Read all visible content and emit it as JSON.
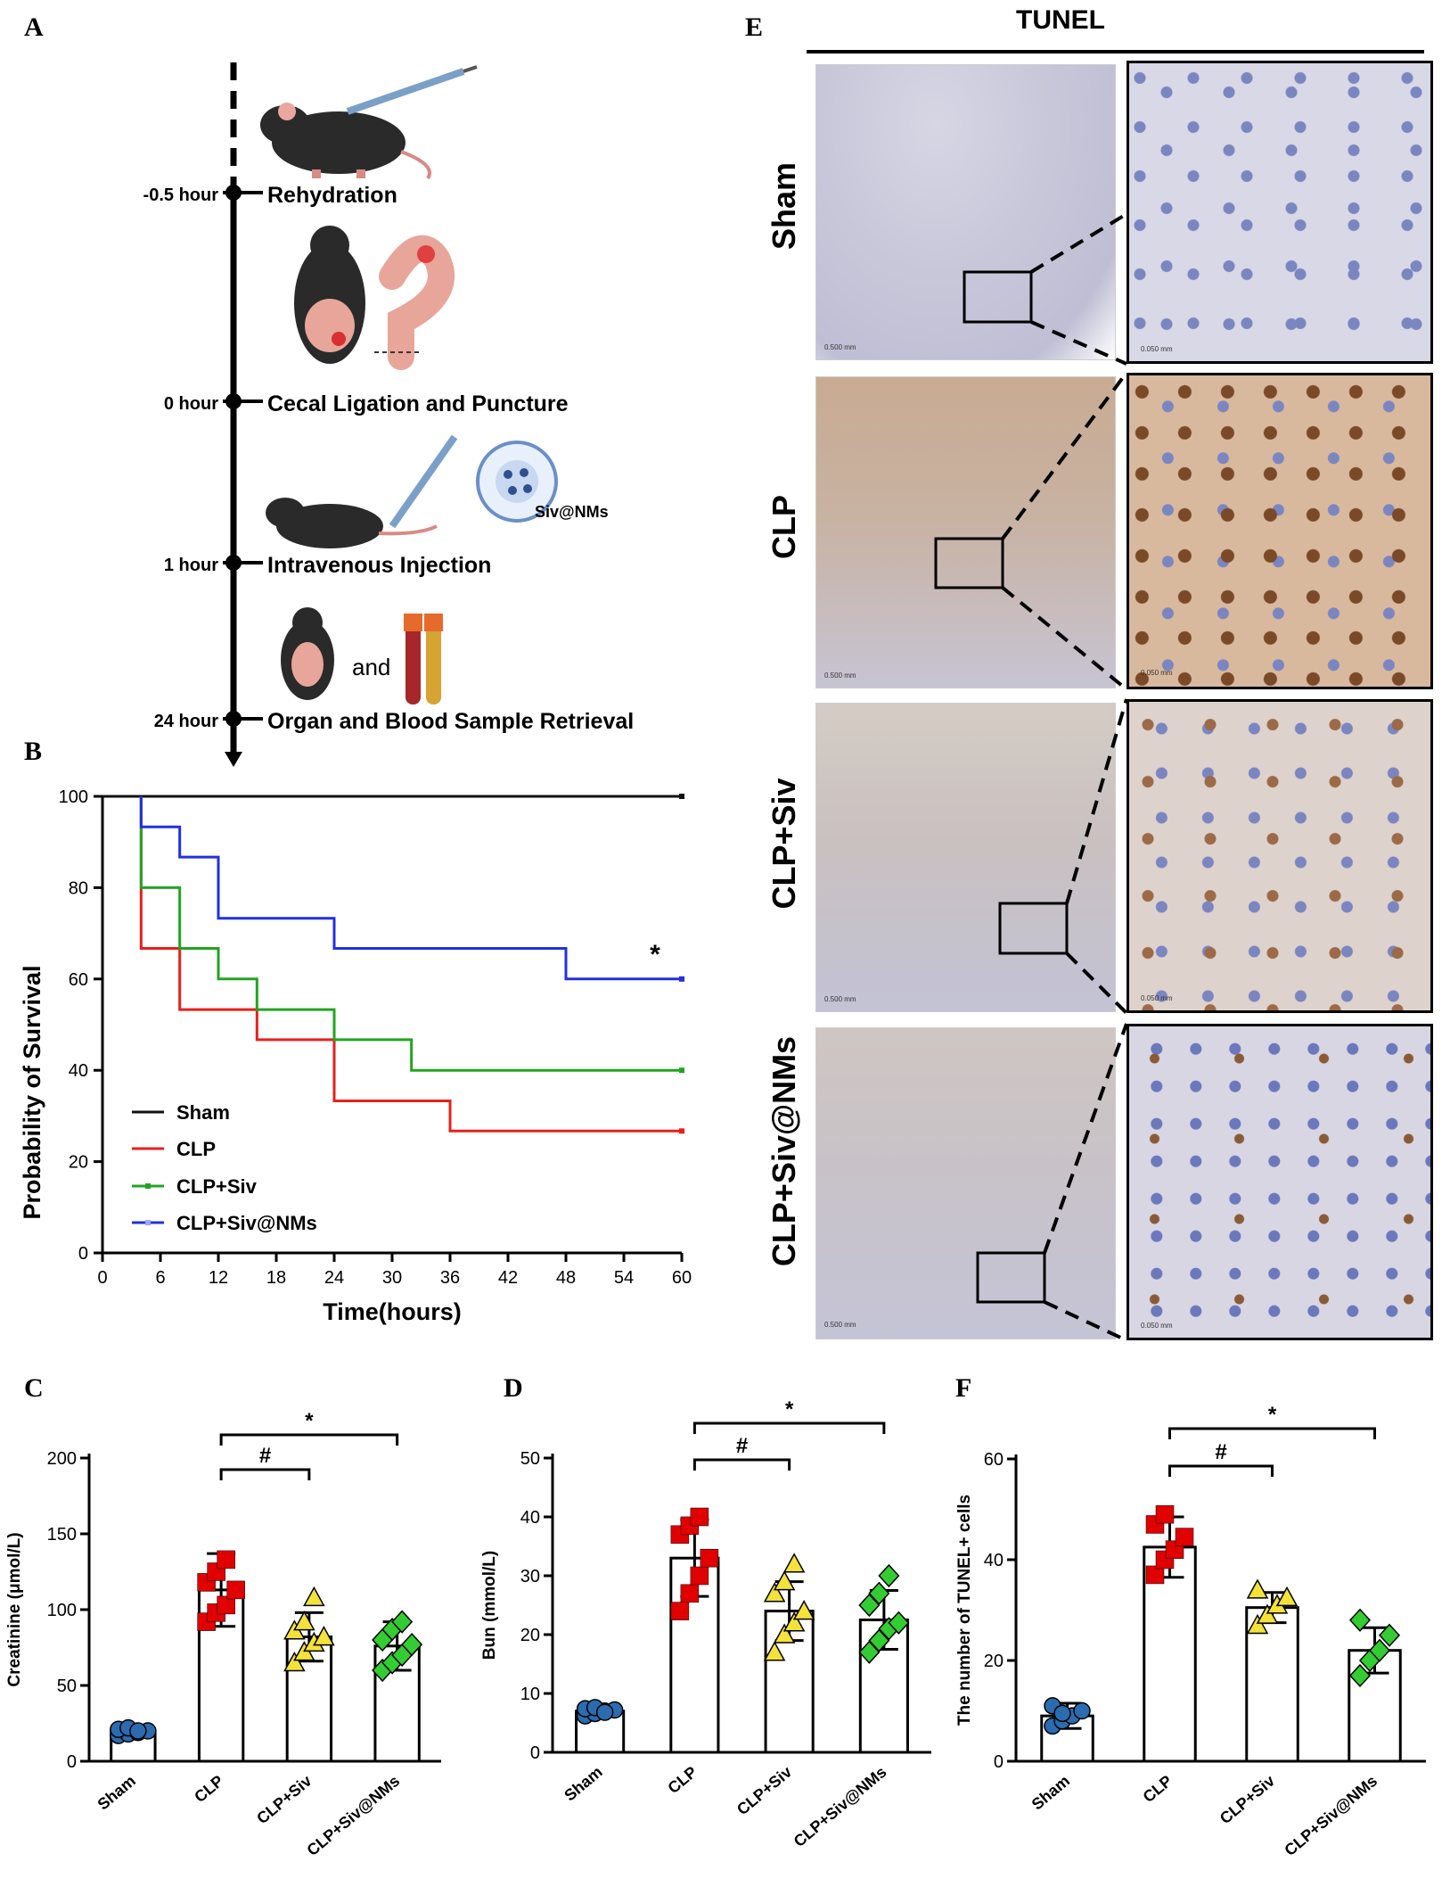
{
  "panels": {
    "a": "A",
    "b": "B",
    "c": "C",
    "d": "D",
    "e": "E",
    "f": "F"
  },
  "timeline": {
    "steps": [
      {
        "time": "-0.5 hour",
        "label": "Rehydration"
      },
      {
        "time": "0 hour",
        "label": "Cecal Ligation and Puncture"
      },
      {
        "time": "1 hour",
        "label": "Intravenous Injection"
      },
      {
        "time": "24 hour",
        "label": "Organ and Blood Sample Retrieval"
      }
    ],
    "nanoparticle_label": "Siv@NMs",
    "and_text": "and"
  },
  "colors": {
    "sham": "#111111",
    "clp": "#e8201a",
    "siv": "#22a422",
    "nms": "#2230e0",
    "sham_marker": "#2b6cb0",
    "clp_marker": "#e00000",
    "siv_marker": "#f3e23a",
    "nms_marker": "#33cc33"
  },
  "chart_data": [
    {
      "type": "line",
      "subtype": "kaplan-meier",
      "panel": "B",
      "title": "",
      "xlabel": "Time(hours)",
      "ylabel": "Probability of Survival",
      "xlim": [
        0,
        60
      ],
      "ylim": [
        0,
        100
      ],
      "xticks": [
        0,
        6,
        12,
        18,
        24,
        30,
        36,
        42,
        48,
        54,
        60
      ],
      "yticks": [
        0,
        20,
        40,
        60,
        80,
        100
      ],
      "annotation": "*",
      "series": [
        {
          "name": "Sham",
          "steps": [
            [
              0,
              100
            ],
            [
              60,
              100
            ]
          ]
        },
        {
          "name": "CLP",
          "steps": [
            [
              4,
              100
            ],
            [
              4,
              66.7
            ],
            [
              8,
              66.7
            ],
            [
              8,
              53.3
            ],
            [
              16,
              53.3
            ],
            [
              16,
              46.7
            ],
            [
              24,
              46.7
            ],
            [
              24,
              33.3
            ],
            [
              36,
              33.3
            ],
            [
              36,
              26.7
            ],
            [
              60,
              26.7
            ]
          ]
        },
        {
          "name": "CLP+Siv",
          "steps": [
            [
              4,
              100
            ],
            [
              4,
              80
            ],
            [
              8,
              80
            ],
            [
              8,
              66.7
            ],
            [
              12,
              66.7
            ],
            [
              12,
              60
            ],
            [
              16,
              60
            ],
            [
              16,
              53.3
            ],
            [
              24,
              53.3
            ],
            [
              24,
              46.7
            ],
            [
              32,
              46.7
            ],
            [
              32,
              40
            ],
            [
              60,
              40
            ]
          ]
        },
        {
          "name": "CLP+Siv@NMs",
          "steps": [
            [
              4,
              100
            ],
            [
              4,
              93.3
            ],
            [
              8,
              93.3
            ],
            [
              8,
              86.7
            ],
            [
              12,
              86.7
            ],
            [
              12,
              73.3
            ],
            [
              24,
              73.3
            ],
            [
              24,
              66.7
            ],
            [
              48,
              66.7
            ],
            [
              48,
              60
            ],
            [
              60,
              60
            ]
          ]
        }
      ]
    },
    {
      "type": "bar",
      "panel": "C",
      "ylabel": "Creatinine (μmol/L)",
      "ylim": [
        0,
        200
      ],
      "yticks": [
        0,
        50,
        100,
        150,
        200
      ],
      "categories": [
        "Sham",
        "CLP",
        "CLP+Siv",
        "CLP+Siv@NMs"
      ],
      "values": [
        20,
        113,
        82,
        76
      ],
      "errors": [
        3,
        24,
        16,
        16
      ],
      "points": [
        [
          17,
          18,
          19,
          20,
          21,
          22,
          20
        ],
        [
          92,
          98,
          103,
          113,
          118,
          125,
          133
        ],
        [
          65,
          72,
          78,
          82,
          86,
          92,
          108
        ],
        [
          60,
          65,
          70,
          77,
          80,
          87,
          92
        ]
      ],
      "comparisons": [
        {
          "from": 1,
          "to": 2,
          "label": "#"
        },
        {
          "from": 1,
          "to": 3,
          "label": "*"
        }
      ]
    },
    {
      "type": "bar",
      "panel": "D",
      "ylabel": "Bun (mmol/L)",
      "ylim": [
        0,
        50
      ],
      "yticks": [
        0,
        10,
        20,
        30,
        40,
        50
      ],
      "categories": [
        "Sham",
        "CLP",
        "CLP+Siv",
        "CLP+Siv@NMs"
      ],
      "values": [
        7,
        33,
        24,
        22.5
      ],
      "errors": [
        0.8,
        6.5,
        5,
        5
      ],
      "points": [
        [
          6.2,
          6.6,
          7,
          7.2,
          7.4,
          7.6,
          6.8
        ],
        [
          24,
          27,
          30,
          33,
          37,
          38.5,
          40
        ],
        [
          17,
          20,
          22,
          24,
          27,
          29,
          32
        ],
        [
          17,
          19,
          21,
          22,
          25,
          27,
          30
        ]
      ],
      "comparisons": [
        {
          "from": 1,
          "to": 2,
          "label": "#"
        },
        {
          "from": 1,
          "to": 3,
          "label": "*"
        }
      ]
    },
    {
      "type": "bar",
      "panel": "F",
      "ylabel": "The number of TUNEL+ cells",
      "ylim": [
        0,
        60
      ],
      "yticks": [
        0,
        20,
        40,
        60
      ],
      "categories": [
        "Sham",
        "CLP",
        "CLP+Siv",
        "CLP+Siv@NMs"
      ],
      "values": [
        9,
        42.5,
        30.5,
        22
      ],
      "errors": [
        2.5,
        6,
        3,
        4.5
      ],
      "points": [
        [
          7,
          8,
          9,
          10,
          11,
          9.5
        ],
        [
          37,
          40,
          42,
          44.5,
          47,
          49
        ],
        [
          27,
          29,
          31,
          32.5,
          34
        ],
        [
          17,
          20,
          22,
          25,
          28
        ]
      ],
      "comparisons": [
        {
          "from": 1,
          "to": 2,
          "label": "#"
        },
        {
          "from": 1,
          "to": 3,
          "label": "*"
        }
      ]
    }
  ],
  "tunel": {
    "title": "TUNEL",
    "rows": [
      "Sham",
      "CLP",
      "CLP+Siv",
      "CLP+Siv@NMs"
    ],
    "scale_lo": "0.500 mm",
    "scale_hi": "0.050 mm"
  }
}
